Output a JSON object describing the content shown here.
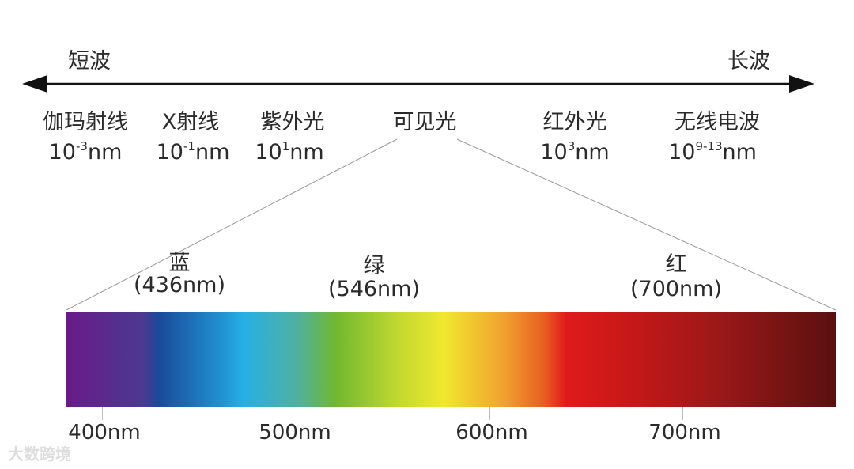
{
  "arrow": {
    "left_label": "短波",
    "right_label": "长波"
  },
  "bands": [
    {
      "name": "伽玛射线",
      "base": "10",
      "exp": "-3",
      "unit": "nm"
    },
    {
      "name": "X射线",
      "base": "10",
      "exp": "-1",
      "unit": "nm"
    },
    {
      "name": "紫外光",
      "base": "10",
      "exp": "1",
      "unit": "nm"
    },
    {
      "name": "可见光"
    },
    {
      "name": "红外光",
      "base": "10",
      "exp": "3",
      "unit": "nm"
    },
    {
      "name": "无线电波",
      "base": "10",
      "exp": "9-13",
      "unit": "nm"
    }
  ],
  "visible_colors": [
    {
      "name": "蓝",
      "wavelength": "(436nm)"
    },
    {
      "name": "绿",
      "wavelength": "(546nm)"
    },
    {
      "name": "红",
      "wavelength": "(700nm)"
    }
  ],
  "axis_ticks": [
    "400nm",
    "500nm",
    "600nm",
    "700nm"
  ],
  "spectrum_colors": [
    "#6a1a8a",
    "#4a3a90",
    "#1a4a9a",
    "#2090d0",
    "#25b0e5",
    "#50b0a0",
    "#70b830",
    "#c0d830",
    "#f0e830",
    "#f0a030",
    "#e86020",
    "#e01a1a",
    "#c01818",
    "#9a1818",
    "#5a1010"
  ],
  "watermark": "大数跨境"
}
